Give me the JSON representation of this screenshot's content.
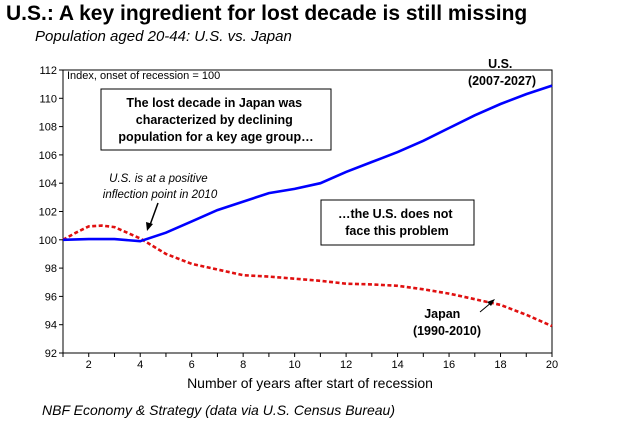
{
  "title": "U.S.: A key ingredient for lost decade is still missing",
  "subtitle": "Population aged 20-44: U.S. vs. Japan",
  "source": "NBF Economy & Strategy (data via U.S. Census Bureau)",
  "chart_data": {
    "type": "line",
    "index_note": "Index, onset of recession = 100",
    "xlabel": "Number of years after start of recession",
    "ylabel": "",
    "xlim": [
      1,
      20
    ],
    "ylim": [
      92,
      112
    ],
    "xticks": [
      2,
      4,
      6,
      8,
      10,
      12,
      14,
      16,
      18,
      20
    ],
    "yticks": [
      92,
      94,
      96,
      98,
      100,
      102,
      104,
      106,
      108,
      110,
      112
    ],
    "series": [
      {
        "name": "U.S.",
        "label_line1": "U.S.",
        "label_line2": "(2007-2027)",
        "color": "#0000ff",
        "style": "solid",
        "x": [
          1,
          2,
          3,
          4,
          5,
          6,
          7,
          8,
          9,
          10,
          11,
          12,
          13,
          14,
          15,
          16,
          17,
          18,
          19,
          20
        ],
        "values": [
          100.0,
          100.05,
          100.05,
          99.9,
          100.5,
          101.3,
          102.1,
          102.7,
          103.3,
          103.6,
          104.0,
          104.8,
          105.5,
          106.2,
          107.0,
          107.9,
          108.8,
          109.6,
          110.3,
          110.9
        ]
      },
      {
        "name": "Japan",
        "label_line1": "Japan",
        "label_line2": "(1990-2010)",
        "color": "#e01010",
        "style": "dashed",
        "x": [
          1,
          1.5,
          2,
          2.5,
          3,
          3.5,
          4,
          5,
          6,
          7,
          8,
          9,
          10,
          11,
          12,
          13,
          14,
          15,
          16,
          17,
          18,
          19,
          20
        ],
        "values": [
          100.0,
          100.5,
          100.95,
          101.0,
          100.9,
          100.5,
          100.1,
          99.0,
          98.3,
          97.9,
          97.5,
          97.4,
          97.25,
          97.1,
          96.9,
          96.85,
          96.75,
          96.5,
          96.2,
          95.8,
          95.4,
          94.7,
          93.9
        ]
      }
    ],
    "annotations": {
      "lost_decade_box": [
        "The lost decade in Japan was",
        "characterized by declining",
        "population for a key age group…"
      ],
      "us_problem_box": [
        "…the U.S. does not",
        "face this problem"
      ],
      "inflection_note": [
        "U.S. is at a positive",
        "inflection point in 2010"
      ]
    }
  }
}
